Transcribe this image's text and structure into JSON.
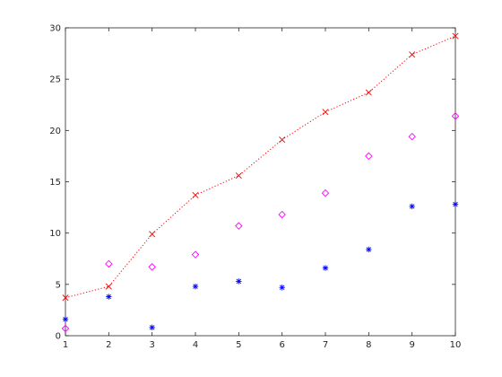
{
  "chart_data": {
    "type": "scatter",
    "xlim": [
      1,
      10
    ],
    "ylim": [
      0,
      30
    ],
    "x_ticks": [
      "1",
      "2",
      "3",
      "4",
      "5",
      "6",
      "7",
      "8",
      "9",
      "10"
    ],
    "y_ticks": [
      "0",
      "5",
      "10",
      "15",
      "20",
      "25",
      "30"
    ],
    "grid": false,
    "legend": "none",
    "series": [
      {
        "marker": "x",
        "line": "dotted",
        "color": "#ff0000",
        "x": [
          1,
          2,
          3,
          4,
          5,
          6,
          7,
          8,
          9,
          10
        ],
        "y": [
          3.7,
          4.8,
          9.9,
          13.7,
          15.6,
          19.1,
          21.8,
          23.7,
          27.4,
          29.2
        ]
      },
      {
        "marker": "diamond",
        "line": "none",
        "color": "#ff00ff",
        "x": [
          1,
          2,
          3,
          4,
          5,
          6,
          7,
          8,
          9,
          10
        ],
        "y": [
          0.7,
          7.0,
          6.7,
          7.9,
          10.7,
          11.8,
          13.9,
          17.5,
          19.4,
          21.4
        ]
      },
      {
        "marker": "asterisk",
        "line": "none",
        "color": "#0000ff",
        "x": [
          1,
          2,
          3,
          4,
          5,
          6,
          7,
          8,
          9,
          10
        ],
        "y": [
          1.6,
          3.8,
          0.8,
          4.8,
          5.3,
          4.7,
          6.6,
          8.4,
          12.6,
          12.8
        ]
      }
    ]
  }
}
